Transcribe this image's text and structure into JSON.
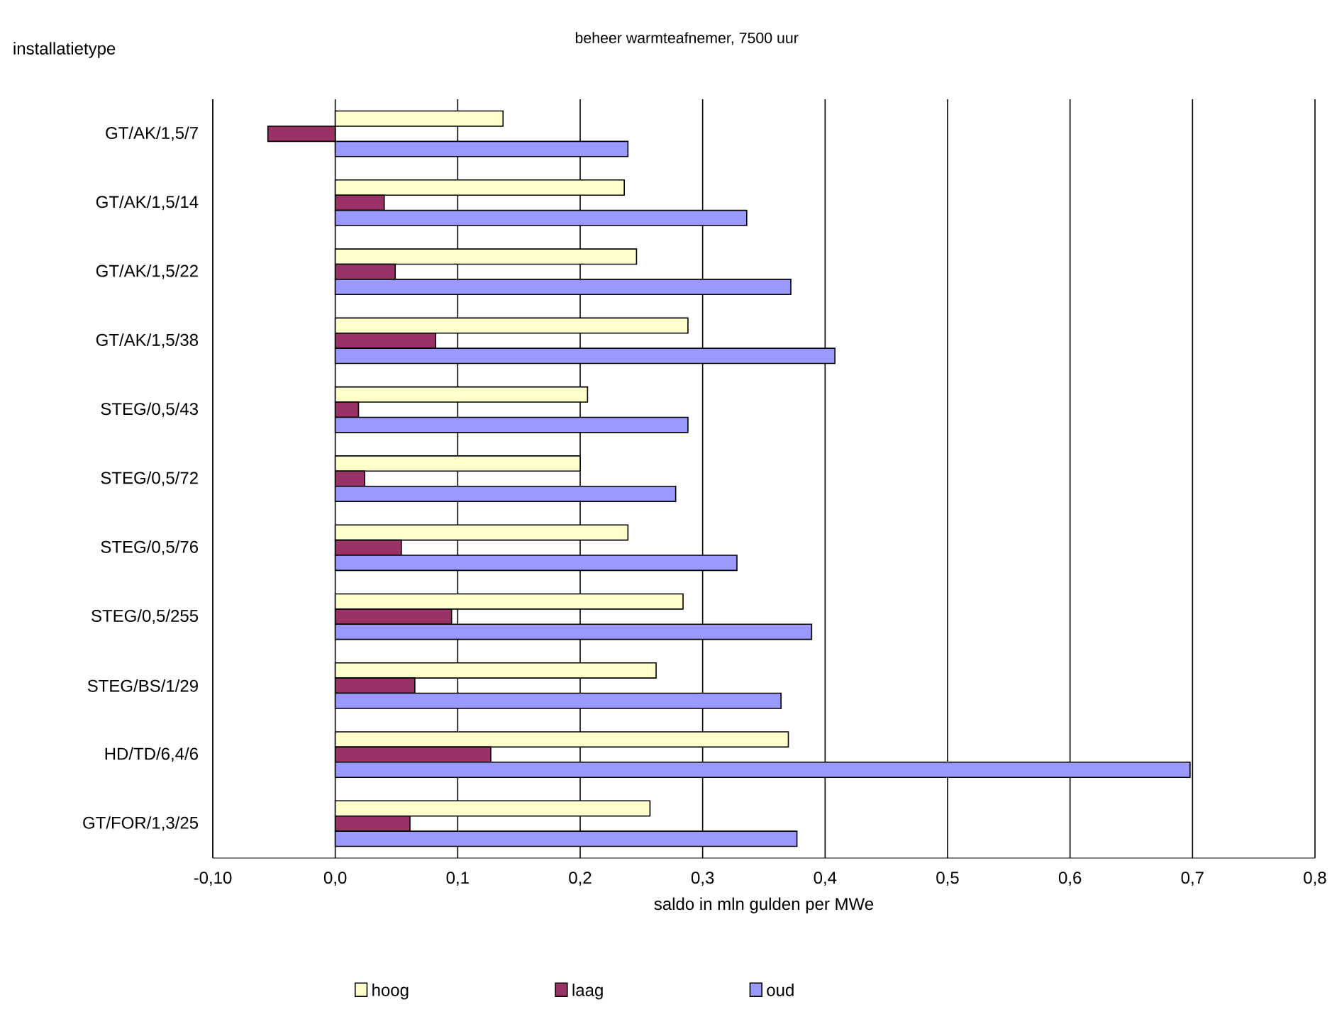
{
  "chart_data": {
    "type": "bar",
    "orientation": "horizontal",
    "title": "beheer warmteafnemer, 7500 uur",
    "ylabel": "installatietype",
    "xlabel": "saldo in mln gulden per MWe",
    "categories": [
      "GT/AK/1,5/7",
      "GT/AK/1,5/14",
      "GT/AK/1,5/22",
      "GT/AK/1,5/38",
      "STEG/0,5/43",
      "STEG/0,5/72",
      "STEG/0,5/76",
      "STEG/0,5/255",
      "STEG/BS/1/29",
      "HD/TD/6,4/6",
      "GT/FOR/1,3/25"
    ],
    "series": [
      {
        "name": "hoog",
        "color": "#ffffcc",
        "values": [
          0.137,
          0.236,
          0.246,
          0.288,
          0.206,
          0.2,
          0.239,
          0.284,
          0.262,
          0.37,
          0.257
        ]
      },
      {
        "name": "laag",
        "color": "#993366",
        "values": [
          -0.055,
          0.04,
          0.049,
          0.082,
          0.019,
          0.024,
          0.054,
          0.095,
          0.065,
          0.127,
          0.061
        ]
      },
      {
        "name": "oud",
        "color": "#9999ff",
        "values": [
          0.239,
          0.336,
          0.372,
          0.408,
          0.288,
          0.278,
          0.328,
          0.389,
          0.364,
          0.698,
          0.377
        ]
      }
    ],
    "xlim": [
      -0.1,
      0.8
    ],
    "xticks": [
      {
        "value": -0.1,
        "label": "-0,10"
      },
      {
        "value": 0,
        "label": "0,0"
      },
      {
        "value": 0.1,
        "label": "0,1"
      },
      {
        "value": 0.2,
        "label": "0,2"
      },
      {
        "value": 0.3,
        "label": "0,3"
      },
      {
        "value": 0.4,
        "label": "0,4"
      },
      {
        "value": 0.5,
        "label": "0,5"
      },
      {
        "value": 0.6,
        "label": "0,6"
      },
      {
        "value": 0.7,
        "label": "0,7"
      },
      {
        "value": 0.8,
        "label": "0,8"
      }
    ],
    "grid": "x",
    "legend": "bottom"
  }
}
